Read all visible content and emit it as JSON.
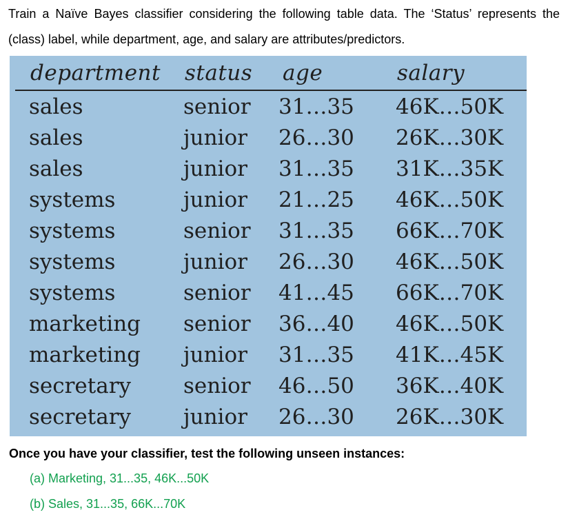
{
  "intro": {
    "line1": "Train a Naïve Bayes classifier considering the following table data. The ‘Status’ represents the",
    "line2": "(class) label, while department, age, and salary are attributes/predictors."
  },
  "table": {
    "headers": [
      "department",
      "status",
      "age",
      "salary"
    ],
    "rows": [
      [
        "sales",
        "senior",
        "31…35",
        "46K…50K"
      ],
      [
        "sales",
        "junior",
        "26…30",
        "26K…30K"
      ],
      [
        "sales",
        "junior",
        "31…35",
        "31K…35K"
      ],
      [
        "systems",
        "junior",
        "21…25",
        "46K…50K"
      ],
      [
        "systems",
        "senior",
        "31…35",
        "66K…70K"
      ],
      [
        "systems",
        "junior",
        "26…30",
        "46K…50K"
      ],
      [
        "systems",
        "senior",
        "41…45",
        "66K…70K"
      ],
      [
        "marketing",
        "senior",
        "36…40",
        "46K…50K"
      ],
      [
        "marketing",
        "junior",
        "31…35",
        "41K…45K"
      ],
      [
        "secretary",
        "senior",
        "46…50",
        "36K…40K"
      ],
      [
        "secretary",
        "junior",
        "26…30",
        "26K…30K"
      ]
    ],
    "background_color": "#a1c4df"
  },
  "test": {
    "prompt": "Once you have your classifier, test the following unseen instances:",
    "instances": [
      "(a) Marketing, 31...35, 46K...50K",
      "(b) Sales, 31...35, 66K...70K"
    ],
    "instance_color": "#12a04f"
  }
}
